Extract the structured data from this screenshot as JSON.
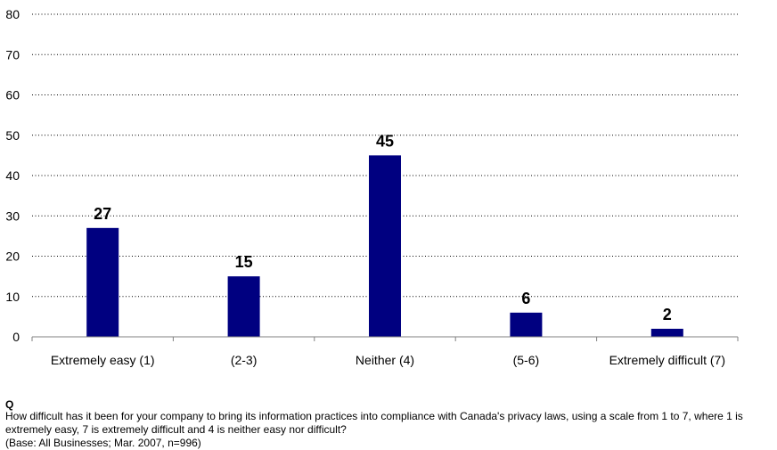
{
  "chart_data": {
    "type": "bar",
    "categories": [
      "Extremely easy (1)",
      "(2-3)",
      "Neither (4)",
      "(5-6)",
      "Extremely difficult (7)"
    ],
    "values": [
      27,
      15,
      45,
      6,
      2
    ],
    "ylim": [
      0,
      80
    ],
    "yticks": [
      0,
      10,
      20,
      30,
      40,
      50,
      60,
      70,
      80
    ],
    "grid": true,
    "bar_color": "#000080",
    "title": "",
    "xlabel": "",
    "ylabel": ""
  },
  "footnote": {
    "q_label": "Q",
    "question": "How difficult has it been for your company to bring its information practices into compliance with Canada's privacy laws, using a scale from 1 to 7, where 1 is extremely easy, 7 is extremely difficult and 4 is neither easy nor difficult?",
    "base": "(Base: All Businesses; Mar. 2007, n=996)"
  }
}
